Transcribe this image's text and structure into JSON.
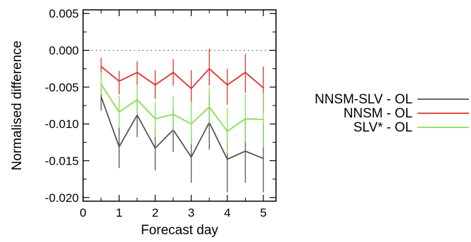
{
  "chart_data": {
    "type": "line",
    "title": "",
    "xlabel": "Forecast day",
    "ylabel": "Normalised difference",
    "xlim": [
      0,
      5.35
    ],
    "ylim": [
      -0.0205,
      0.0055
    ],
    "xticks": [
      0,
      1,
      2,
      3,
      4,
      5
    ],
    "xtick_labels": [
      "0",
      "1",
      "2",
      "3",
      "4",
      "5"
    ],
    "yticks": [
      0.005,
      0.0,
      -0.005,
      -0.01,
      -0.015,
      -0.02
    ],
    "ytick_labels": [
      "0.005",
      "0.000",
      "-0.005",
      "-0.010",
      "-0.015",
      "-0.020"
    ],
    "reference_line": {
      "y": 0.0,
      "style": "dotted"
    },
    "legend_position": "right",
    "x": [
      0.5,
      1.0,
      1.5,
      2.0,
      2.5,
      3.0,
      3.5,
      4.0,
      4.5,
      5.0
    ],
    "series": [
      {
        "name": "NNSM-SLV - OL",
        "color": "#555555",
        "values": [
          -0.0063,
          -0.0131,
          -0.0088,
          -0.0133,
          -0.0108,
          -0.0145,
          -0.0098,
          -0.0148,
          -0.0137,
          -0.0147
        ],
        "err_low": [
          -0.0082,
          -0.016,
          -0.0118,
          -0.0163,
          -0.0138,
          -0.018,
          -0.0135,
          -0.0193,
          -0.018,
          -0.0193
        ],
        "err_high": [
          -0.0052,
          -0.0105,
          -0.0065,
          -0.0108,
          -0.008,
          -0.0113,
          -0.006,
          -0.0108,
          -0.0095,
          -0.0098
        ]
      },
      {
        "name": "NNSM - OL",
        "color": "#e03030",
        "values": [
          -0.0022,
          -0.0042,
          -0.003,
          -0.0047,
          -0.003,
          -0.0052,
          -0.0025,
          -0.0047,
          -0.003,
          -0.0051
        ],
        "err_low": [
          -0.0038,
          -0.006,
          -0.0047,
          -0.0066,
          -0.0048,
          -0.0075,
          -0.0048,
          -0.0074,
          -0.0058,
          -0.0085
        ],
        "err_high": [
          -0.001,
          -0.0028,
          -0.0015,
          -0.0027,
          -0.0012,
          -0.0027,
          0.0002,
          -0.0025,
          -0.0005,
          -0.0022
        ]
      },
      {
        "name": "SLV* - OL",
        "color": "#88dd55",
        "values": [
          -0.0046,
          -0.0084,
          -0.0067,
          -0.0093,
          -0.0087,
          -0.01,
          -0.0077,
          -0.011,
          -0.0093,
          -0.0094
        ],
        "err_low": [
          -0.006,
          -0.0105,
          -0.0088,
          -0.0118,
          -0.011,
          -0.0128,
          -0.01,
          -0.014,
          -0.0125,
          -0.0132
        ],
        "err_high": [
          -0.003,
          -0.0062,
          -0.0047,
          -0.007,
          -0.0062,
          -0.007,
          -0.005,
          -0.0078,
          -0.006,
          -0.0058
        ]
      }
    ]
  }
}
